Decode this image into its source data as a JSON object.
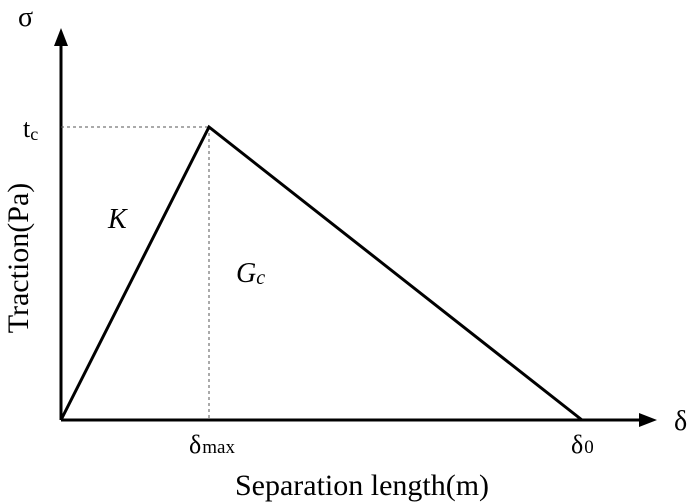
{
  "axes": {
    "y_symbol": "σ",
    "x_symbol": "δ",
    "y_label": "Traction(Pa)",
    "x_label": "Separation length(m)"
  },
  "ticks": {
    "y_peak": {
      "main": "t",
      "sub": "c"
    },
    "x_peak": {
      "main": "δ",
      "sub": "max"
    },
    "x_end": {
      "main": "δ",
      "sub": "0"
    }
  },
  "annotations": {
    "stiffness": "K",
    "fracture_energy": {
      "main": "G",
      "sub": "c"
    }
  },
  "colors": {
    "line": "#000000",
    "guide": "#555555",
    "background": "#ffffff"
  }
}
